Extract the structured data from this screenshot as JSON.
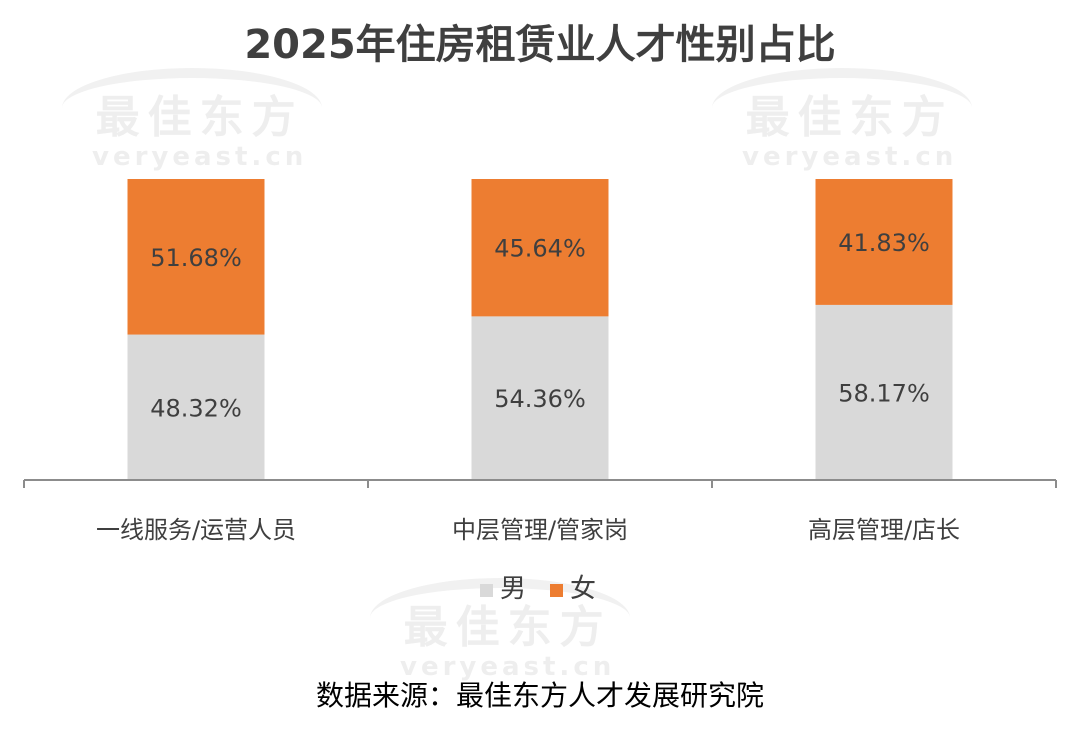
{
  "watermark": {
    "cn": "最佳东方",
    "en": "veryeast.cn"
  },
  "source": "数据来源：最佳东方人才发展研究院",
  "colors": {
    "male": "#d9d9d9",
    "female": "#ed7d31",
    "axis": "#8c8c8c"
  },
  "chart_data": {
    "type": "bar",
    "stacked": true,
    "percent": true,
    "title": "2025年住房租赁业人才性别占比",
    "categories": [
      "一线服务/运营人员",
      "中层管理/管家岗",
      "高层管理/店长"
    ],
    "series": [
      {
        "name": "男",
        "values": [
          48.32,
          54.36,
          58.17
        ],
        "labels": [
          "48.32%",
          "54.36%",
          "58.17%"
        ],
        "color": "#d9d9d9"
      },
      {
        "name": "女",
        "values": [
          51.68,
          45.64,
          41.83
        ],
        "labels": [
          "51.68%",
          "45.64%",
          "41.83%"
        ],
        "color": "#ed7d31"
      }
    ],
    "ylim": [
      0,
      100
    ],
    "legend": "bottom",
    "grid": false
  }
}
